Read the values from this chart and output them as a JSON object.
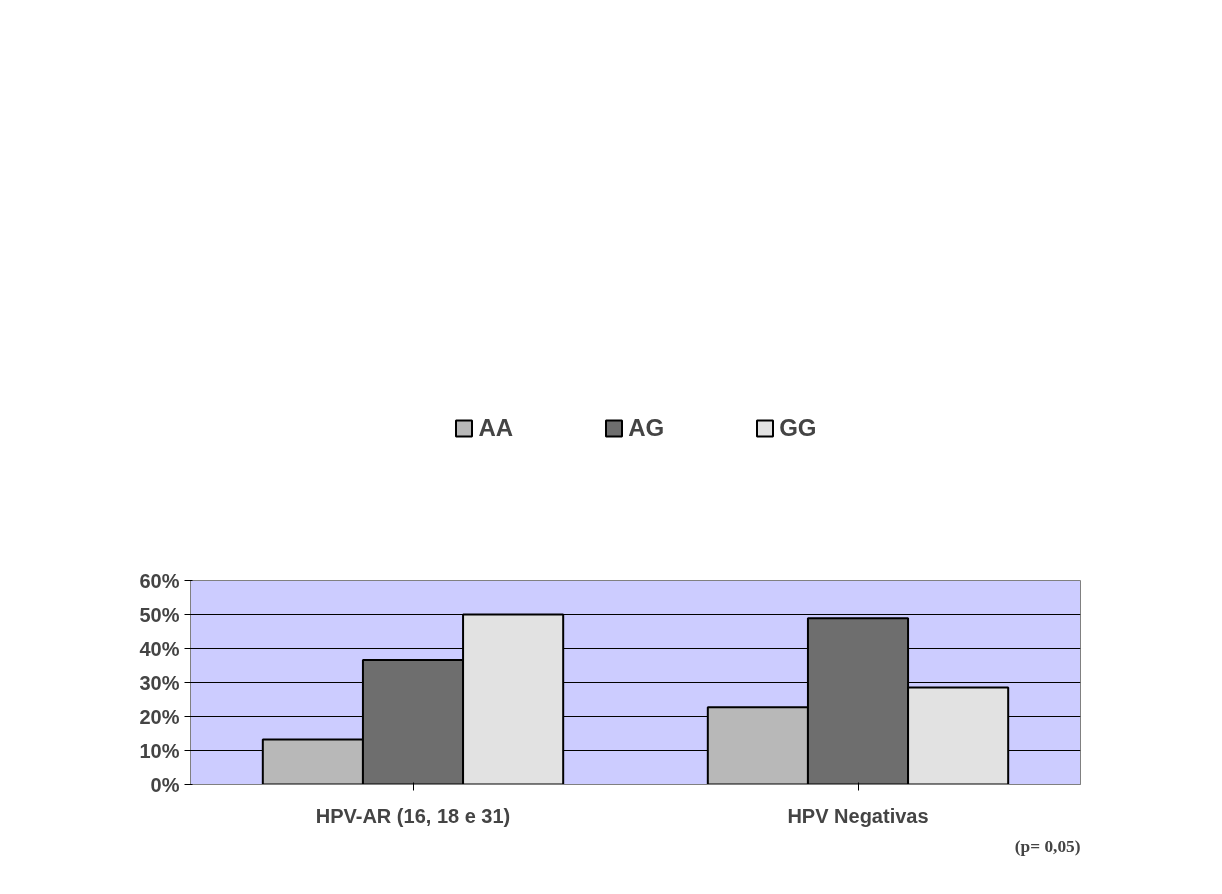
{
  "chart_data": {
    "type": "bar",
    "categories": [
      "HPV-AR (16, 18 e 31)",
      "HPV Negativas"
    ],
    "series": [
      {
        "name": "AA",
        "color": "#b8b8b8",
        "values": [
          0.132,
          0.227
        ]
      },
      {
        "name": "AG",
        "color": "#6e6e6e",
        "values": [
          0.366,
          0.489
        ]
      },
      {
        "name": "GG",
        "color": "#e2e2e2",
        "values": [
          0.5,
          0.285
        ]
      }
    ],
    "ylim": [
      0,
      0.6
    ],
    "yticks": [
      {
        "value": 0,
        "label": "0%"
      },
      {
        "value": 0.1,
        "label": "10%"
      },
      {
        "value": 0.2,
        "label": "20%"
      },
      {
        "value": 0.3,
        "label": "30%"
      },
      {
        "value": 0.4,
        "label": "40%"
      },
      {
        "value": 0.5,
        "label": "50%"
      },
      {
        "value": 0.6,
        "label": "60%"
      }
    ],
    "grid": "y",
    "legend": "top",
    "annotations": [
      "(p= 0,05)"
    ]
  }
}
